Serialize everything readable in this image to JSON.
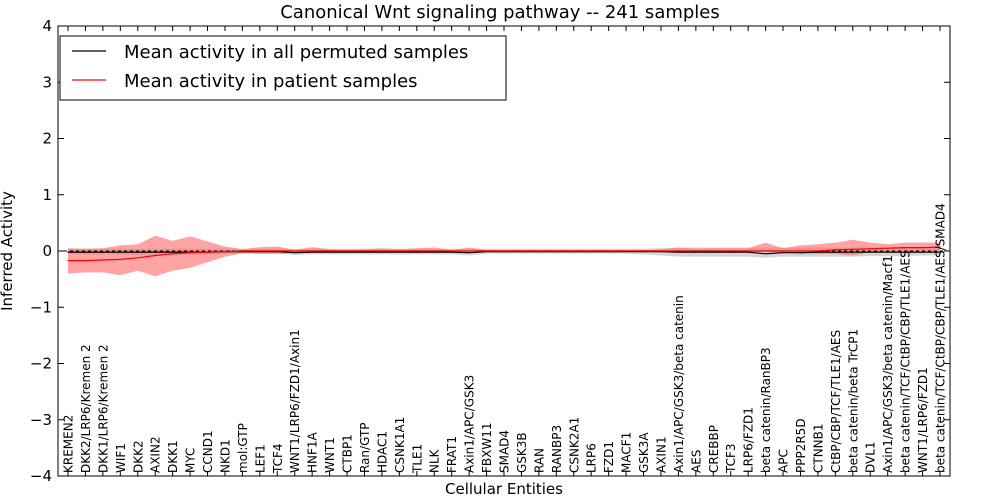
{
  "chart_data": {
    "type": "line",
    "title": "Canonical Wnt signaling pathway -- 241 samples",
    "xlabel": "Cellular Entities",
    "ylabel": "Inferred Activity",
    "ylim": [
      -4,
      4
    ],
    "yticks": [
      "4",
      "3",
      "2",
      "1",
      "0",
      "−1",
      "−2",
      "−3",
      "−4"
    ],
    "ytick_values": [
      4,
      3,
      2,
      1,
      0,
      -1,
      -2,
      -3,
      -4
    ],
    "categories": [
      "KREMEN2",
      "DKK2/LRP6/Kremen 2",
      "DKK1/LRP6/Kremen 2",
      "WIF1",
      "DKK2",
      "AXIN2",
      "DKK1",
      "MYC",
      "CCND1",
      "NKD1",
      "mol:GTP",
      "LEF1",
      "TCF4",
      "WNT1/LRP6/FZD1/Axin1",
      "HNF1A",
      "WNT1",
      "CTBP1",
      "Ran/GTP",
      "HDAC1",
      "CSNK1A1",
      "TLE1",
      "NLK",
      "FRAT1",
      "Axin1/APC/GSK3",
      "FBXW11",
      "SMAD4",
      "GSK3B",
      "RAN",
      "RANBP3",
      "CSNK2A1",
      "LRP6",
      "FZD1",
      "MACF1",
      "GSK3A",
      "AXIN1",
      "Axin1/APC/GSK3/beta catenin",
      "AES",
      "CREBBP",
      "TCF3",
      "LRP6/FZD1",
      "beta catenin/RanBP3",
      "APC",
      "PPP2R5D",
      "CTNNB1",
      "CtBP/CBP/TCF/TLE1/AES",
      "beta catenin/beta TrCP1",
      "DVL1",
      "Axin1/APC/GSK3/beta catenin/Macf1",
      "beta catenin/TCF/CtBP/CBP/TLE1/AES",
      "WNT1/LRP6/FZD1",
      "beta catenin/TCF/CtBP/CBP/TLE1/AES/SMAD4"
    ],
    "series": [
      {
        "name": "Mean activity in all permuted samples",
        "color": "#000000",
        "values": [
          -0.02,
          -0.02,
          -0.02,
          -0.02,
          -0.02,
          -0.02,
          -0.02,
          -0.02,
          -0.02,
          -0.01,
          -0.01,
          -0.01,
          -0.01,
          -0.03,
          -0.02,
          -0.02,
          -0.02,
          -0.02,
          -0.02,
          -0.02,
          -0.02,
          -0.02,
          -0.02,
          -0.03,
          -0.01,
          -0.01,
          -0.01,
          -0.01,
          -0.01,
          -0.01,
          -0.01,
          -0.01,
          -0.01,
          -0.01,
          -0.01,
          -0.02,
          -0.02,
          -0.02,
          -0.02,
          -0.02,
          -0.05,
          -0.03,
          -0.03,
          -0.02,
          -0.02,
          -0.02,
          -0.02,
          -0.02,
          -0.02,
          -0.02,
          -0.02
        ],
        "band_low": [
          -0.05,
          -0.06,
          -0.06,
          -0.06,
          -0.07,
          -0.07,
          -0.07,
          -0.06,
          -0.06,
          -0.05,
          -0.05,
          -0.05,
          -0.05,
          -0.07,
          -0.06,
          -0.06,
          -0.06,
          -0.06,
          -0.06,
          -0.06,
          -0.06,
          -0.06,
          -0.06,
          -0.08,
          -0.05,
          -0.05,
          -0.05,
          -0.05,
          -0.05,
          -0.05,
          -0.05,
          -0.05,
          -0.05,
          -0.06,
          -0.08,
          -0.1,
          -0.1,
          -0.1,
          -0.1,
          -0.1,
          -0.12,
          -0.1,
          -0.1,
          -0.1,
          -0.1,
          -0.1,
          -0.09,
          -0.09,
          -0.09,
          -0.08,
          -0.08
        ],
        "band_high": [
          0.04,
          0.04,
          0.04,
          0.04,
          0.04,
          0.04,
          0.04,
          0.04,
          0.04,
          0.04,
          0.04,
          0.04,
          0.04,
          0.04,
          0.04,
          0.04,
          0.04,
          0.04,
          0.04,
          0.04,
          0.04,
          0.04,
          0.04,
          0.04,
          0.04,
          0.04,
          0.04,
          0.04,
          0.04,
          0.04,
          0.04,
          0.04,
          0.04,
          0.04,
          0.05,
          0.06,
          0.06,
          0.06,
          0.06,
          0.06,
          0.06,
          0.06,
          0.06,
          0.06,
          0.06,
          0.06,
          0.06,
          0.06,
          0.06,
          0.06,
          0.06
        ]
      },
      {
        "name": "Mean activity in patient samples",
        "color": "#ff0000",
        "values": [
          -0.17,
          -0.17,
          -0.16,
          -0.15,
          -0.12,
          -0.08,
          -0.05,
          -0.03,
          -0.02,
          -0.01,
          0.0,
          0.0,
          0.0,
          0.0,
          0.0,
          0.0,
          0.0,
          0.0,
          0.0,
          0.0,
          0.0,
          0.0,
          0.0,
          0.0,
          0.0,
          0.0,
          0.0,
          0.0,
          0.0,
          0.0,
          0.0,
          0.0,
          0.0,
          0.0,
          0.0,
          0.0,
          0.0,
          0.0,
          0.0,
          0.0,
          0.0,
          0.0,
          0.0,
          0.0,
          0.02,
          0.03,
          0.04,
          0.05,
          0.06,
          0.06,
          0.07
        ],
        "band_low": [
          -0.4,
          -0.38,
          -0.38,
          -0.43,
          -0.35,
          -0.45,
          -0.35,
          -0.3,
          -0.2,
          -0.1,
          -0.04,
          -0.05,
          -0.05,
          -0.03,
          -0.02,
          -0.02,
          -0.01,
          -0.02,
          -0.02,
          -0.01,
          -0.02,
          -0.02,
          -0.01,
          -0.01,
          -0.01,
          -0.01,
          -0.01,
          -0.01,
          -0.01,
          -0.01,
          -0.01,
          -0.01,
          -0.01,
          -0.01,
          -0.01,
          -0.01,
          -0.01,
          -0.01,
          -0.01,
          -0.01,
          -0.02,
          -0.03,
          -0.05,
          -0.05,
          -0.05,
          -0.08,
          -0.02,
          -0.02,
          0.0,
          0.0,
          0.0
        ],
        "band_high": [
          0.05,
          0.04,
          0.05,
          0.1,
          0.12,
          0.27,
          0.18,
          0.26,
          0.17,
          0.08,
          0.03,
          0.07,
          0.08,
          0.02,
          0.07,
          0.03,
          0.02,
          0.03,
          0.05,
          0.03,
          0.05,
          0.06,
          0.02,
          0.06,
          0.02,
          0.02,
          0.02,
          0.02,
          0.02,
          0.02,
          0.02,
          0.02,
          0.02,
          0.02,
          0.03,
          0.06,
          0.04,
          0.05,
          0.05,
          0.05,
          0.15,
          0.05,
          0.1,
          0.12,
          0.15,
          0.2,
          0.15,
          0.12,
          0.15,
          0.15,
          0.15
        ]
      }
    ],
    "legend": {
      "position": "top-left",
      "entries": [
        "Mean activity in all permuted samples",
        "Mean activity in patient samples"
      ]
    },
    "grid": false,
    "colors": {
      "permuted_band": "#b3b3b3",
      "patient_band": "#ff6666",
      "zero_line": "#000000"
    }
  }
}
